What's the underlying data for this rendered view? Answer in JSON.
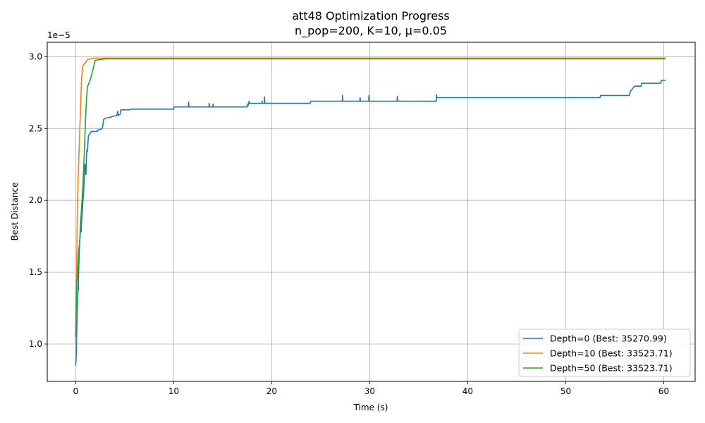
{
  "chart_data": {
    "type": "line",
    "title": "att48 Optimization Progress",
    "subtitle": "n_pop=200, K=10, μ=0.05",
    "xlabel": "Time (s)",
    "ylabel": "Best Distance",
    "y_offset_label": "1e−5",
    "xlim": [
      -2.9,
      63.2
    ],
    "ylim": [
      7.4,
      31.0
    ],
    "xticks": [
      0,
      10,
      20,
      30,
      40,
      50,
      60
    ],
    "yticks": [
      1.0,
      1.5,
      2.0,
      2.5,
      3.0
    ],
    "xtick_labels": [
      "0",
      "10",
      "20",
      "30",
      "40",
      "50",
      "60"
    ],
    "ytick_labels": [
      "1.0",
      "1.5",
      "2.0",
      "2.5",
      "3.0"
    ],
    "grid": true,
    "legend_position": "bottom-right",
    "series": [
      {
        "name": "Depth=0 (Best: 35270.99)",
        "color": "#1f77b4",
        "points": [
          [
            0.0,
            8.5
          ],
          [
            0.05,
            9.0
          ],
          [
            0.1,
            10.5
          ],
          [
            0.15,
            12.0
          ],
          [
            0.2,
            13.0
          ],
          [
            0.25,
            14.0
          ],
          [
            0.28,
            13.8
          ],
          [
            0.3,
            15.0
          ],
          [
            0.35,
            16.0
          ],
          [
            0.4,
            17.0
          ],
          [
            0.45,
            17.5
          ],
          [
            0.5,
            18.0
          ],
          [
            0.55,
            17.8
          ],
          [
            0.6,
            18.5
          ],
          [
            0.65,
            19.0
          ],
          [
            0.7,
            19.5
          ],
          [
            0.75,
            20.0
          ],
          [
            0.8,
            20.4
          ],
          [
            0.85,
            21.0
          ],
          [
            0.9,
            21.8
          ],
          [
            0.95,
            22.5
          ],
          [
            1.0,
            22.0
          ],
          [
            1.05,
            21.8
          ],
          [
            1.1,
            23.0
          ],
          [
            1.15,
            23.5
          ],
          [
            1.2,
            23.4
          ],
          [
            1.25,
            24.0
          ],
          [
            1.3,
            24.5
          ],
          [
            1.45,
            24.6
          ],
          [
            1.5,
            24.7
          ],
          [
            1.6,
            24.8
          ],
          [
            2.2,
            24.8
          ],
          [
            2.3,
            24.9
          ],
          [
            2.6,
            24.95
          ],
          [
            2.75,
            25.1
          ],
          [
            2.85,
            25.6
          ],
          [
            2.95,
            25.7
          ],
          [
            3.3,
            25.75
          ],
          [
            3.6,
            25.8
          ],
          [
            3.8,
            25.85
          ],
          [
            4.2,
            25.9
          ],
          [
            4.3,
            26.2
          ],
          [
            4.35,
            25.9
          ],
          [
            4.55,
            26.0
          ],
          [
            4.6,
            26.3
          ],
          [
            5.5,
            26.3
          ],
          [
            5.55,
            26.35
          ],
          [
            10.0,
            26.35
          ],
          [
            10.05,
            26.5
          ],
          [
            11.5,
            26.5
          ],
          [
            11.52,
            26.85
          ],
          [
            11.55,
            26.5
          ],
          [
            13.6,
            26.5
          ],
          [
            13.62,
            26.75
          ],
          [
            13.65,
            26.5
          ],
          [
            14.0,
            26.5
          ],
          [
            14.02,
            26.7
          ],
          [
            14.05,
            26.5
          ],
          [
            17.5,
            26.5
          ],
          [
            17.55,
            26.7
          ],
          [
            17.6,
            26.6
          ],
          [
            17.7,
            26.9
          ],
          [
            17.75,
            26.75
          ],
          [
            19.0,
            26.75
          ],
          [
            19.02,
            26.9
          ],
          [
            19.05,
            26.75
          ],
          [
            19.25,
            26.75
          ],
          [
            19.27,
            27.2
          ],
          [
            19.3,
            26.75
          ],
          [
            23.9,
            26.75
          ],
          [
            24.0,
            26.9
          ],
          [
            27.2,
            26.9
          ],
          [
            27.22,
            27.3
          ],
          [
            27.25,
            26.9
          ],
          [
            29.0,
            26.9
          ],
          [
            29.02,
            27.15
          ],
          [
            29.05,
            26.9
          ],
          [
            29.9,
            26.9
          ],
          [
            29.92,
            27.3
          ],
          [
            29.95,
            26.9
          ],
          [
            32.8,
            26.9
          ],
          [
            32.82,
            27.25
          ],
          [
            32.85,
            26.9
          ],
          [
            36.8,
            26.9
          ],
          [
            36.82,
            27.35
          ],
          [
            36.85,
            27.15
          ],
          [
            53.5,
            27.15
          ],
          [
            53.55,
            27.3
          ],
          [
            56.5,
            27.3
          ],
          [
            56.6,
            27.6
          ],
          [
            56.8,
            27.75
          ],
          [
            57.0,
            27.95
          ],
          [
            57.7,
            27.95
          ],
          [
            57.75,
            28.15
          ],
          [
            59.7,
            28.15
          ],
          [
            59.75,
            28.35
          ],
          [
            60.2,
            28.35
          ]
        ]
      },
      {
        "name": "Depth=10 (Best: 33523.71)",
        "color": "#ff7f0e",
        "points": [
          [
            0.0,
            10.0
          ],
          [
            0.05,
            12.5
          ],
          [
            0.1,
            15.5
          ],
          [
            0.15,
            18.0
          ],
          [
            0.2,
            20.5
          ],
          [
            0.3,
            22.5
          ],
          [
            0.4,
            24.5
          ],
          [
            0.5,
            26.5
          ],
          [
            0.6,
            28.5
          ],
          [
            0.7,
            29.3
          ],
          [
            0.8,
            29.45
          ],
          [
            1.0,
            29.55
          ],
          [
            1.2,
            29.8
          ],
          [
            1.5,
            29.85
          ],
          [
            2.0,
            29.9
          ],
          [
            2.5,
            29.9
          ],
          [
            60.2,
            29.9
          ]
        ]
      },
      {
        "name": "Depth=50 (Best: 33523.71)",
        "color": "#2ca02c",
        "points": [
          [
            0.0,
            10.5
          ],
          [
            0.1,
            14.0
          ],
          [
            0.2,
            15.0
          ],
          [
            0.3,
            16.5
          ],
          [
            0.4,
            17.0
          ],
          [
            0.5,
            18.5
          ],
          [
            0.6,
            19.5
          ],
          [
            0.7,
            20.5
          ],
          [
            0.8,
            22.0
          ],
          [
            0.9,
            23.5
          ],
          [
            1.0,
            25.5
          ],
          [
            1.1,
            27.0
          ],
          [
            1.2,
            27.9
          ],
          [
            1.5,
            28.4
          ],
          [
            2.0,
            29.75
          ],
          [
            2.5,
            29.8
          ],
          [
            3.0,
            29.85
          ],
          [
            60.2,
            29.85
          ]
        ]
      }
    ]
  }
}
